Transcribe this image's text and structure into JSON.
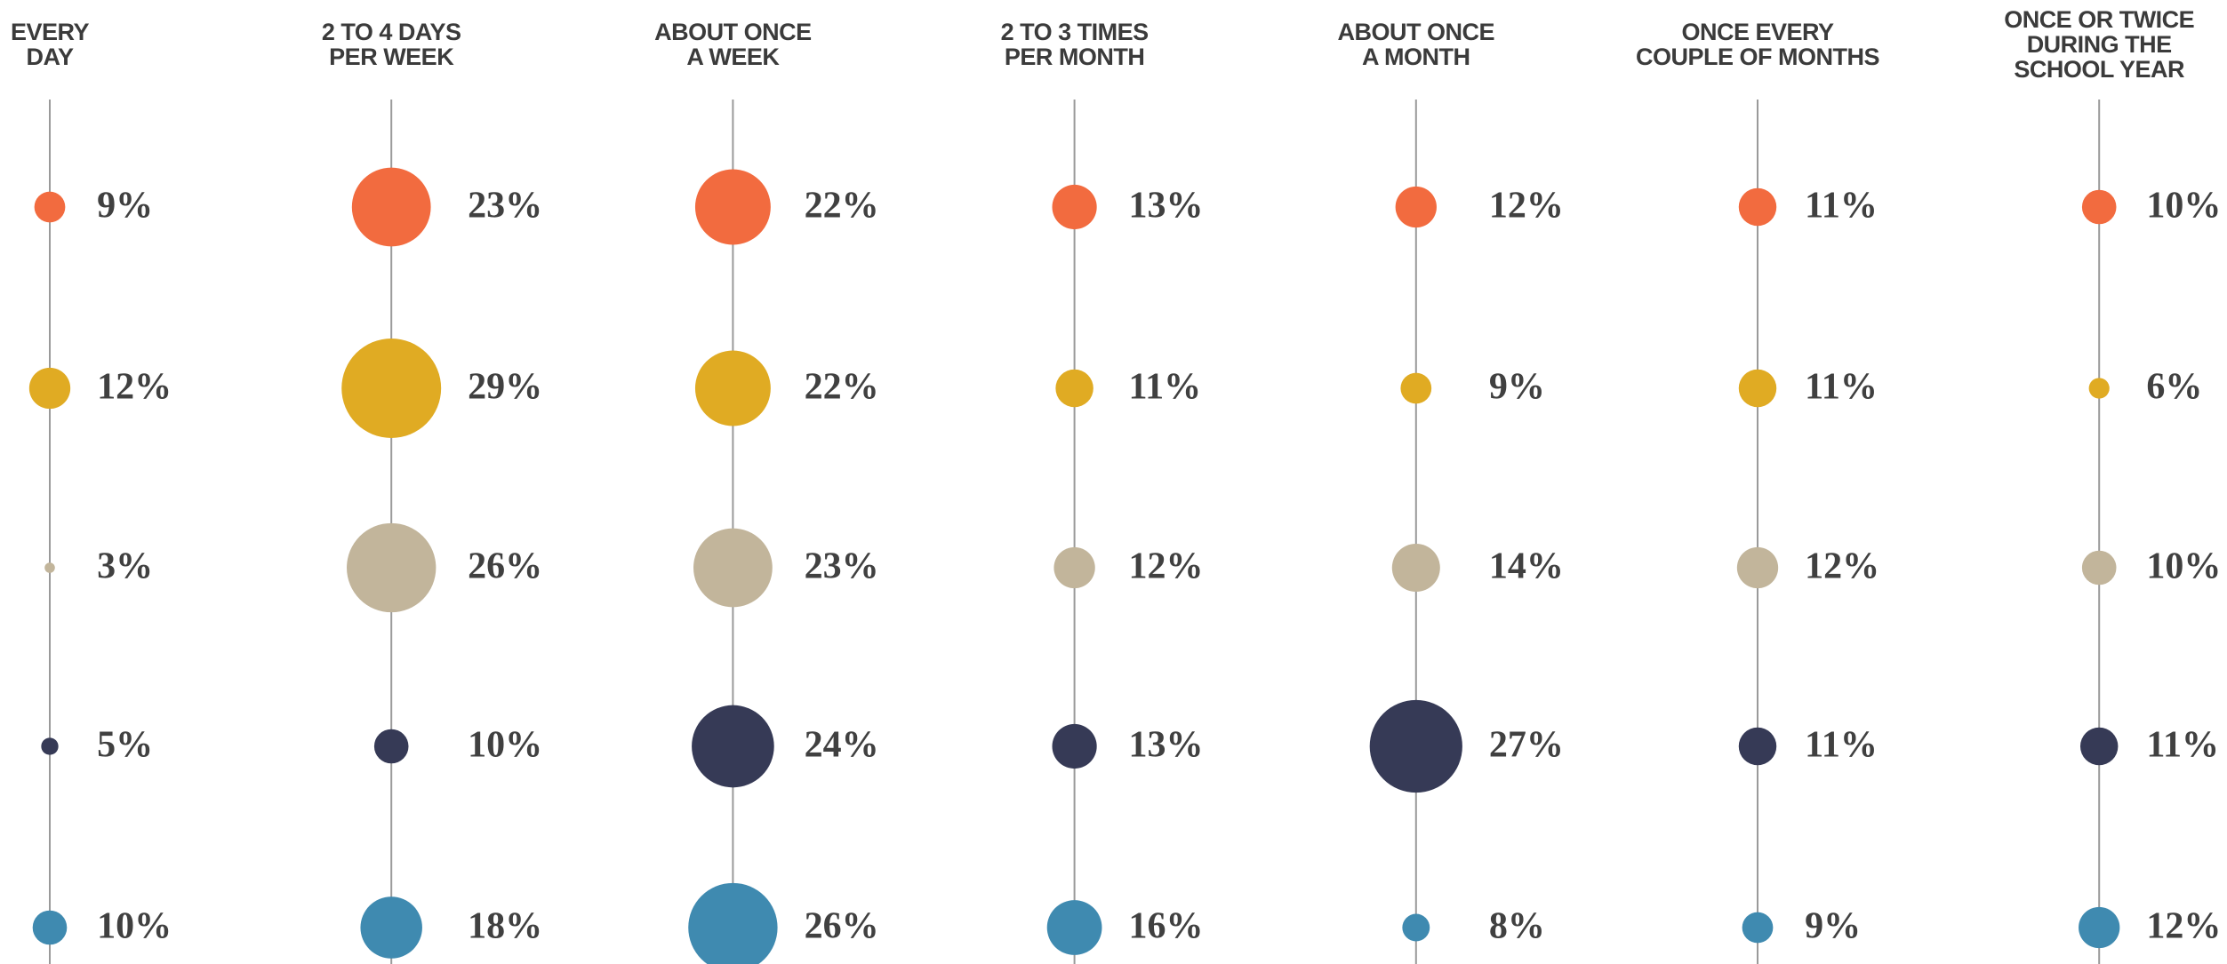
{
  "chart_data": {
    "type": "bubble",
    "categories": [
      [
        "EVERY",
        "DAY"
      ],
      [
        "2 TO 4 DAYS",
        "PER WEEK"
      ],
      [
        "ABOUT ONCE",
        "A WEEK"
      ],
      [
        "2 TO 3 TIMES",
        "PER MONTH"
      ],
      [
        "ABOUT ONCE",
        "A MONTH"
      ],
      [
        "ONCE EVERY",
        "COUPLE OF MONTHS"
      ],
      [
        "ONCE OR TWICE",
        "DURING THE",
        "SCHOOL YEAR"
      ]
    ],
    "series": [
      {
        "color": "#f26b3f",
        "values": [
          9,
          23,
          22,
          13,
          12,
          11,
          10
        ],
        "value_labels": [
          "9%",
          "23%",
          "22%",
          "13%",
          "12%",
          "11%",
          "10%"
        ]
      },
      {
        "color": "#e0ab23",
        "values": [
          12,
          29,
          22,
          11,
          9,
          11,
          6
        ],
        "value_labels": [
          "12%",
          "29%",
          "22%",
          "11%",
          "9%",
          "11%",
          "6%"
        ]
      },
      {
        "color": "#c2b59b",
        "values": [
          3,
          26,
          23,
          12,
          14,
          12,
          10
        ],
        "value_labels": [
          "3%",
          "26%",
          "23%",
          "12%",
          "14%",
          "12%",
          "10%"
        ]
      },
      {
        "color": "#363a56",
        "values": [
          5,
          10,
          24,
          13,
          27,
          11,
          11
        ],
        "value_labels": [
          "5%",
          "10%",
          "24%",
          "13%",
          "27%",
          "11%",
          "11%"
        ]
      },
      {
        "color": "#3f8ab0",
        "values": [
          10,
          18,
          26,
          16,
          8,
          9,
          12
        ],
        "value_labels": [
          "10%",
          "18%",
          "26%",
          "16%",
          "8%",
          "9%",
          "12%"
        ]
      }
    ]
  }
}
